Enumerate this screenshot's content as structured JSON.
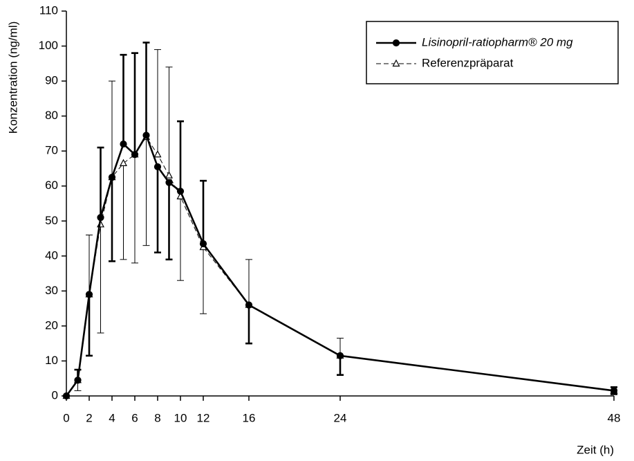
{
  "chart_data": {
    "type": "line",
    "x_label": "Zeit (h)",
    "y_label": "Konzentration (ng/ml)",
    "x": [
      0,
      1,
      2,
      3,
      4,
      5,
      6,
      7,
      8,
      9,
      10,
      12,
      16,
      24,
      48
    ],
    "series": [
      {
        "name": "Lisinopril-ratiopharm® 20 mg",
        "color": "#000000",
        "marker": "circle",
        "line_style": "solid",
        "values": [
          0,
          4.5,
          29,
          51,
          62.5,
          72,
          69,
          74.5,
          65.5,
          61,
          58.5,
          43.5,
          26,
          11.5,
          1.5
        ],
        "errors_up": [
          null,
          3,
          null,
          20,
          null,
          25.5,
          29,
          26.5,
          null,
          null,
          20,
          18,
          null,
          null,
          1
        ],
        "errors_down": [
          null,
          null,
          17.5,
          null,
          24,
          null,
          null,
          null,
          24.5,
          22,
          null,
          null,
          11,
          5.5,
          1
        ]
      },
      {
        "name": "Referenzpräparat",
        "color": "#000000",
        "marker": "triangle",
        "line_style": "dashed",
        "values": [
          0,
          4.5,
          29,
          49,
          62.5,
          66.5,
          69,
          74,
          69,
          63,
          57,
          42.5,
          26,
          11.5,
          1.5
        ],
        "errors_up": [
          null,
          null,
          17,
          null,
          27.5,
          null,
          null,
          null,
          30,
          31,
          null,
          null,
          13,
          5,
          1
        ],
        "errors_down": [
          null,
          3,
          null,
          31,
          null,
          27.5,
          31,
          31,
          null,
          null,
          24,
          19,
          null,
          null,
          1
        ]
      }
    ],
    "xlim": [
      0,
      48
    ],
    "xticks": [
      0,
      2,
      4,
      6,
      8,
      10,
      12,
      16,
      24,
      48
    ],
    "ylim": [
      0,
      110
    ],
    "yticks": [
      0,
      10,
      20,
      30,
      40,
      50,
      60,
      70,
      80,
      90,
      100,
      110
    ],
    "grid": false,
    "legend": "top-right"
  }
}
